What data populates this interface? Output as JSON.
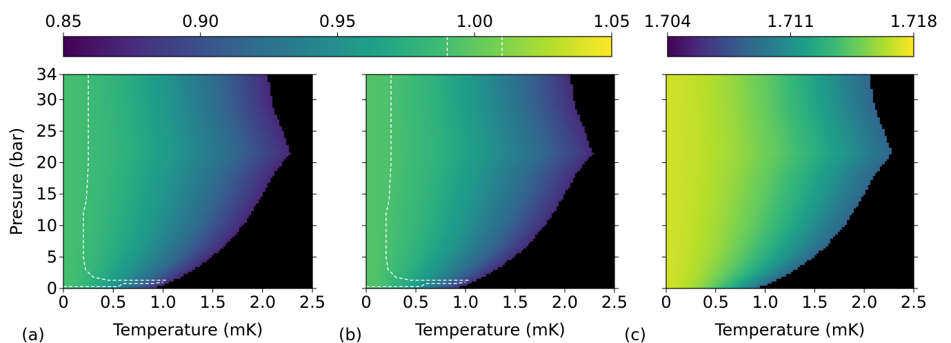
{
  "colors": {
    "viridis": [
      "#440154",
      "#482878",
      "#3e4989",
      "#31688e",
      "#26828e",
      "#1f9e89",
      "#35b779",
      "#6ece58",
      "#b5de2b",
      "#fde725"
    ],
    "outside_region": "#000000",
    "contour": "#ffffff"
  },
  "colorbars": [
    {
      "id": "cb-left",
      "range": [
        0.85,
        1.05
      ],
      "ticks": [
        "0.85",
        "0.90",
        "0.95",
        "1.00",
        "1.05"
      ],
      "tick_values": [
        0.85,
        0.9,
        0.95,
        1.0,
        1.05
      ],
      "contour_values": [
        0.99,
        1.01
      ]
    },
    {
      "id": "cb-right",
      "range": [
        1.704,
        1.718
      ],
      "ticks": [
        "1.704",
        "1.711",
        "1.718"
      ],
      "tick_values": [
        1.704,
        1.711,
        1.718
      ],
      "contour_values": []
    }
  ],
  "chart_data": [
    {
      "panel": "(a)",
      "type": "heatmap",
      "xlabel": "Temperature (mK)",
      "ylabel": "Presure (bar)",
      "xlim": [
        0,
        2.5
      ],
      "ylim": [
        0,
        34
      ],
      "xticks": [
        "0",
        "0.5",
        "1.0",
        "1.5",
        "2.0",
        "2.5"
      ],
      "xtick_values": [
        0,
        0.5,
        1.0,
        1.5,
        2.0,
        2.5
      ],
      "yticks": [
        "0",
        "5",
        "10",
        "15",
        "20",
        "25",
        "30",
        "34"
      ],
      "ytick_values": [
        0,
        5,
        10,
        15,
        20,
        25,
        30,
        34
      ],
      "color_range": [
        0.85,
        1.05
      ],
      "value_at_T0": 0.99,
      "value_at_Tc": 0.872,
      "phase_boundary": {
        "T": [
          0.9,
          1.0,
          1.2,
          1.4,
          1.6,
          1.8,
          2.0,
          2.1,
          2.2,
          2.28,
          2.2,
          2.1,
          2.05
        ],
        "P": [
          0,
          0.5,
          2,
          4,
          6.5,
          10,
          15,
          18,
          20,
          21.5,
          25,
          29,
          34
        ]
      },
      "contour": [
        {
          "level": 1.01,
          "T": [
            0.0,
            0.55,
            0.6,
            0.9,
            1.0
          ],
          "P": [
            0.3,
            0.3,
            0.8,
            0.8,
            1.0
          ]
        },
        {
          "level": 0.99,
          "T": [
            0.25,
            0.25,
            0.23,
            0.2,
            0.2,
            0.22,
            0.3,
            0.45,
            0.7,
            1.05
          ],
          "P": [
            34,
            20,
            14,
            12,
            5,
            3,
            1.8,
            1.3,
            1.3,
            1.3
          ]
        }
      ]
    },
    {
      "panel": "(b)",
      "type": "heatmap",
      "xlabel": "Temperature (mK)",
      "ylabel": "",
      "xlim": [
        0,
        2.5
      ],
      "ylim": [
        0,
        34
      ],
      "xticks": [
        "0",
        "0.5",
        "1.0",
        "1.5",
        "2.0",
        "2.5"
      ],
      "xtick_values": [
        0,
        0.5,
        1.0,
        1.5,
        2.0,
        2.5
      ],
      "yticks": [],
      "ytick_values": [
        0,
        5,
        10,
        15,
        20,
        25,
        30,
        34
      ],
      "color_range": [
        0.85,
        1.05
      ],
      "value_at_T0": 0.995,
      "value_at_Tc": 0.875,
      "phase_boundary": {
        "T": [
          0.9,
          1.0,
          1.2,
          1.4,
          1.6,
          1.8,
          2.0,
          2.1,
          2.2,
          2.28,
          2.2,
          2.1,
          2.05
        ],
        "P": [
          0,
          0.5,
          2,
          4,
          6.5,
          10,
          15,
          18,
          20,
          21.5,
          25,
          29,
          34
        ]
      },
      "contour": [
        {
          "level": 1.01,
          "T": [
            0.0,
            0.55,
            0.6,
            0.9,
            1.0
          ],
          "P": [
            0.3,
            0.3,
            0.8,
            0.8,
            1.0
          ]
        },
        {
          "level": 0.99,
          "T": [
            0.25,
            0.25,
            0.23,
            0.2,
            0.2,
            0.22,
            0.3,
            0.45,
            0.7,
            1.05
          ],
          "P": [
            34,
            20,
            14,
            12,
            5,
            3,
            1.8,
            1.3,
            1.3,
            1.3
          ]
        }
      ]
    },
    {
      "panel": "(c)",
      "type": "heatmap",
      "xlabel": "Temperature (mK)",
      "ylabel": "",
      "xlim": [
        0,
        2.5
      ],
      "ylim": [
        0,
        34
      ],
      "xticks": [
        "0",
        "0.5",
        "1.0",
        "1.5",
        "2.0",
        "2.5"
      ],
      "xtick_values": [
        0,
        0.5,
        1.0,
        1.5,
        2.0,
        2.5
      ],
      "yticks": [],
      "ytick_values": [
        0,
        5,
        10,
        15,
        20,
        25,
        30,
        34
      ],
      "color_range": [
        1.704,
        1.718
      ],
      "value_at_T0": 1.717,
      "value_at_Tc": 1.7085,
      "phase_boundary": {
        "T": [
          0.9,
          1.0,
          1.2,
          1.4,
          1.6,
          1.8,
          2.0,
          2.1,
          2.2,
          2.28,
          2.2,
          2.1,
          2.05
        ],
        "P": [
          0,
          0.5,
          2,
          4,
          6.5,
          10,
          15,
          18,
          20,
          21.5,
          25,
          29,
          34
        ]
      },
      "contour": []
    }
  ]
}
